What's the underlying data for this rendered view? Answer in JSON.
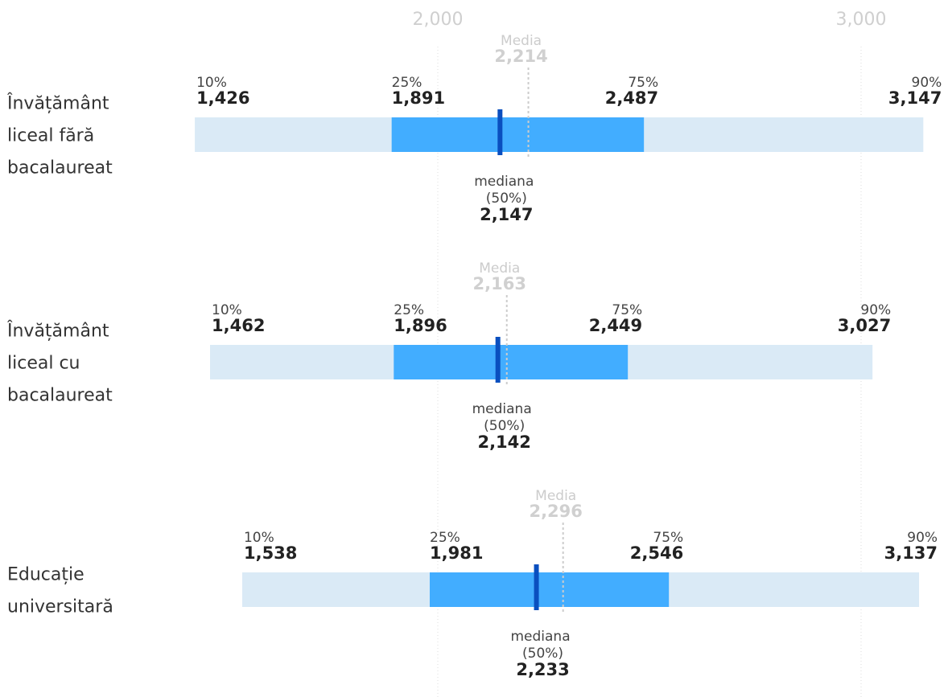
{
  "chart_data": {
    "type": "bar",
    "orientation": "horizontal",
    "x_ticks": [
      2000,
      3000
    ],
    "x_tick_labels": [
      "2,000",
      "3,000"
    ],
    "grid": true,
    "mean_label": "Media",
    "median_label_line1": "mediana",
    "median_label_line2": "(50%)",
    "percentile_labels": {
      "p10": "10%",
      "p25": "25%",
      "p75": "75%",
      "p90": "90%"
    },
    "colors": {
      "outer_range": "#daeaf6",
      "inner_range": "#42adff",
      "median": "#0a4fbf",
      "mean": "#cccccc",
      "grid": "#dddddd"
    },
    "rows": [
      {
        "label_lines": [
          "Învățământ",
          "liceal fără",
          "bacalaureat"
        ],
        "p10": 1426,
        "p10_label": "1,426",
        "p25": 1891,
        "p25_label": "1,891",
        "median": 2147,
        "median_label": "2,147",
        "p75": 2487,
        "p75_label": "2,487",
        "p90": 3147,
        "p90_label": "3,147",
        "mean": 2214,
        "mean_label": "2,214"
      },
      {
        "label_lines": [
          "Învățământ",
          "liceal cu",
          "bacalaureat"
        ],
        "p10": 1462,
        "p10_label": "1,462",
        "p25": 1896,
        "p25_label": "1,896",
        "median": 2142,
        "median_label": "2,142",
        "p75": 2449,
        "p75_label": "2,449",
        "p90": 3027,
        "p90_label": "3,027",
        "mean": 2163,
        "mean_label": "2,163"
      },
      {
        "label_lines": [
          "Educație",
          "universitară"
        ],
        "p10": 1538,
        "p10_label": "1,538",
        "p25": 1981,
        "p25_label": "1,981",
        "median": 2233,
        "median_label": "2,233",
        "p75": 2546,
        "p75_label": "2,546",
        "p90": 3137,
        "p90_label": "3,137",
        "mean": 2296,
        "mean_label": "2,296"
      }
    ]
  }
}
